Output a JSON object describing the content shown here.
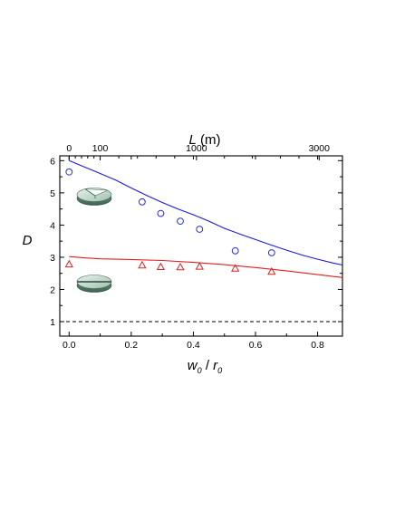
{
  "chart_data": {
    "type": "scatter",
    "title": "",
    "xlabel": {
      "var": "w",
      "sub": "0",
      "sep": " / ",
      "var2": "r",
      "sub2": "0"
    },
    "top_xlabel": {
      "var": "L",
      "unit": "  (m)"
    },
    "ylabel": "D",
    "xlim": [
      -0.03,
      0.88
    ],
    "ylim": [
      0.55,
      6.15
    ],
    "bottom_ticks": [
      0.0,
      0.2,
      0.4,
      0.6,
      0.8
    ],
    "bottom_tick_labels": [
      "0.0",
      "0.2",
      "0.4",
      "0.6",
      "0.8"
    ],
    "y_ticks": [
      1,
      2,
      3,
      4,
      5,
      6
    ],
    "y_tick_labels": [
      "1",
      "2",
      "3",
      "4",
      "5",
      "6"
    ],
    "top_ticks": [
      {
        "w": 0.0,
        "label": "0"
      },
      {
        "w": 0.1,
        "label": "100"
      },
      {
        "w": 0.41,
        "label": "1000"
      },
      {
        "w": 0.805,
        "label": "3000"
      }
    ],
    "grid": false,
    "series": [
      {
        "marker": "circle",
        "color": "#2b2bd6",
        "points": [
          {
            "x": 0.0,
            "y": 5.65
          },
          {
            "x": 0.235,
            "y": 4.72
          },
          {
            "x": 0.295,
            "y": 4.36
          },
          {
            "x": 0.358,
            "y": 4.12
          },
          {
            "x": 0.42,
            "y": 3.87
          },
          {
            "x": 0.535,
            "y": 3.2
          },
          {
            "x": 0.652,
            "y": 3.14
          }
        ]
      },
      {
        "marker": "triangle",
        "color": "#e02020",
        "points": [
          {
            "x": 0.0,
            "y": 2.78
          },
          {
            "x": 0.235,
            "y": 2.75
          },
          {
            "x": 0.295,
            "y": 2.7
          },
          {
            "x": 0.358,
            "y": 2.69
          },
          {
            "x": 0.42,
            "y": 2.71
          },
          {
            "x": 0.535,
            "y": 2.65
          },
          {
            "x": 0.652,
            "y": 2.55
          }
        ]
      },
      {
        "marker": "line",
        "color": "#1a1ae0",
        "points": [
          {
            "x": 0.0,
            "y": 6.0
          },
          {
            "x": 0.05,
            "y": 5.8
          },
          {
            "x": 0.1,
            "y": 5.6
          },
          {
            "x": 0.15,
            "y": 5.4
          },
          {
            "x": 0.2,
            "y": 5.15
          },
          {
            "x": 0.25,
            "y": 4.92
          },
          {
            "x": 0.3,
            "y": 4.7
          },
          {
            "x": 0.35,
            "y": 4.5
          },
          {
            "x": 0.4,
            "y": 4.32
          },
          {
            "x": 0.45,
            "y": 4.12
          },
          {
            "x": 0.5,
            "y": 3.9
          },
          {
            "x": 0.55,
            "y": 3.72
          },
          {
            "x": 0.6,
            "y": 3.55
          },
          {
            "x": 0.65,
            "y": 3.38
          },
          {
            "x": 0.7,
            "y": 3.22
          },
          {
            "x": 0.75,
            "y": 3.07
          },
          {
            "x": 0.8,
            "y": 2.94
          },
          {
            "x": 0.85,
            "y": 2.82
          },
          {
            "x": 0.88,
            "y": 2.76
          }
        ]
      },
      {
        "marker": "line",
        "color": "#e02020",
        "points": [
          {
            "x": 0.0,
            "y": 3.02
          },
          {
            "x": 0.05,
            "y": 2.98
          },
          {
            "x": 0.1,
            "y": 2.95
          },
          {
            "x": 0.2,
            "y": 2.93
          },
          {
            "x": 0.3,
            "y": 2.9
          },
          {
            "x": 0.4,
            "y": 2.84
          },
          {
            "x": 0.5,
            "y": 2.77
          },
          {
            "x": 0.6,
            "y": 2.68
          },
          {
            "x": 0.7,
            "y": 2.58
          },
          {
            "x": 0.8,
            "y": 2.46
          },
          {
            "x": 0.88,
            "y": 2.37
          }
        ]
      },
      {
        "marker": "dashed-line",
        "color": "#000000",
        "points": [
          {
            "x": -0.03,
            "y": 1.0
          },
          {
            "x": 0.88,
            "y": 1.0
          }
        ]
      }
    ],
    "insets": [
      {
        "name": "disk-with-wedge-cut",
        "near_series": "circle"
      },
      {
        "name": "disk-with-slit",
        "near_series": "triangle"
      }
    ]
  }
}
